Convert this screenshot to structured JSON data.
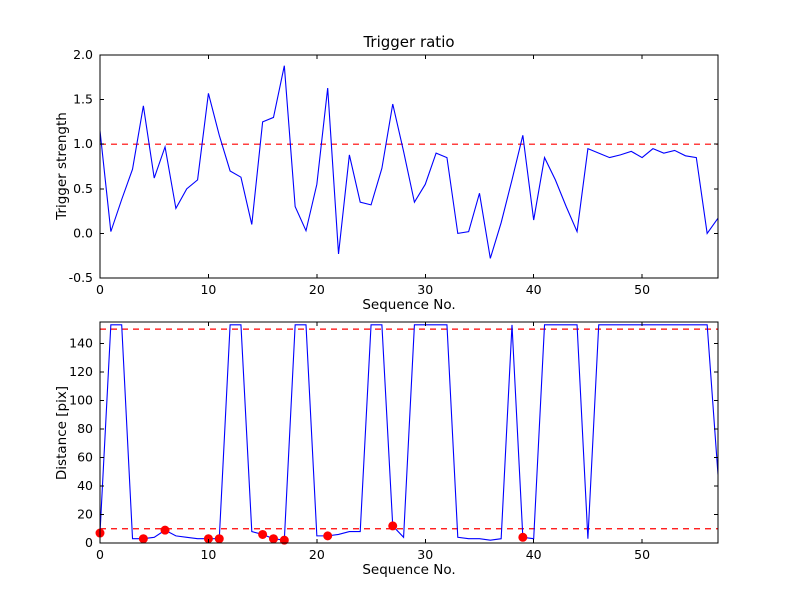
{
  "figure": {
    "background_color": "#ffffff",
    "line_color": "#0000ff",
    "threshold_color": "#ff0000",
    "marker_color": "#ff0000"
  },
  "chart_data": [
    {
      "type": "line",
      "title": "Trigger ratio",
      "xlabel": "Sequence No.",
      "ylabel": "Trigger strength",
      "xlim": [
        0,
        57
      ],
      "ylim": [
        -0.5,
        2.0
      ],
      "xtick_labels": [
        "0",
        "10",
        "20",
        "30",
        "40",
        "50"
      ],
      "ytick_labels": [
        "-0.5",
        "0.0",
        "0.5",
        "1.0",
        "1.5",
        "2.0"
      ],
      "grid": false,
      "legend": "none",
      "line_color": "#0000ff",
      "threshold_lines": [
        {
          "y": 1.0,
          "color": "#ff0000",
          "style": "dashed"
        }
      ],
      "values": [
        1.15,
        0.02,
        0.38,
        0.72,
        1.43,
        0.62,
        0.97,
        0.28,
        0.5,
        0.6,
        1.57,
        1.1,
        0.7,
        0.63,
        0.1,
        1.25,
        1.3,
        1.88,
        0.3,
        0.03,
        0.55,
        1.63,
        -0.23,
        0.88,
        0.35,
        0.32,
        0.73,
        1.45,
        0.92,
        0.35,
        0.55,
        0.9,
        0.85,
        0.0,
        0.02,
        0.45,
        -0.28,
        0.12,
        0.6,
        1.1,
        0.15,
        0.85,
        0.6,
        0.3,
        0.02,
        0.95,
        0.9,
        0.85,
        0.88,
        0.92,
        0.85,
        0.95,
        0.9,
        0.93,
        0.87,
        0.85,
        0.0,
        0.17
      ]
    },
    {
      "type": "line",
      "title": "",
      "xlabel": "Sequence No.",
      "ylabel": "Distance [pix]",
      "xlim": [
        0,
        57
      ],
      "ylim": [
        0,
        155
      ],
      "xtick_labels": [
        "0",
        "10",
        "20",
        "30",
        "40",
        "50"
      ],
      "ytick_labels": [
        "0",
        "20",
        "40",
        "60",
        "80",
        "100",
        "120",
        "140"
      ],
      "grid": false,
      "legend": "none",
      "line_color": "#0000ff",
      "threshold_lines": [
        {
          "y": 150,
          "color": "#ff0000",
          "style": "dashed"
        },
        {
          "y": 10,
          "color": "#ff0000",
          "style": "dashed"
        }
      ],
      "values": [
        7,
        153,
        153,
        3,
        3,
        4,
        9,
        5,
        4,
        3,
        3,
        3,
        153,
        153,
        8,
        6,
        3,
        2,
        153,
        153,
        5,
        5,
        6,
        8,
        8,
        153,
        153,
        12,
        4,
        153,
        153,
        153,
        153,
        4,
        3,
        3,
        2,
        3,
        153,
        4,
        3,
        153,
        153,
        153,
        153,
        3,
        153,
        153,
        153,
        153,
        153,
        153,
        153,
        153,
        153,
        153,
        153,
        48
      ],
      "markers": {
        "type": "circle",
        "color": "#ff0000",
        "x": [
          0,
          4,
          6,
          10,
          11,
          15,
          16,
          17,
          21,
          27,
          39
        ],
        "y": [
          7,
          3,
          9,
          3,
          3,
          6,
          3,
          2,
          5,
          12,
          4
        ]
      }
    }
  ]
}
